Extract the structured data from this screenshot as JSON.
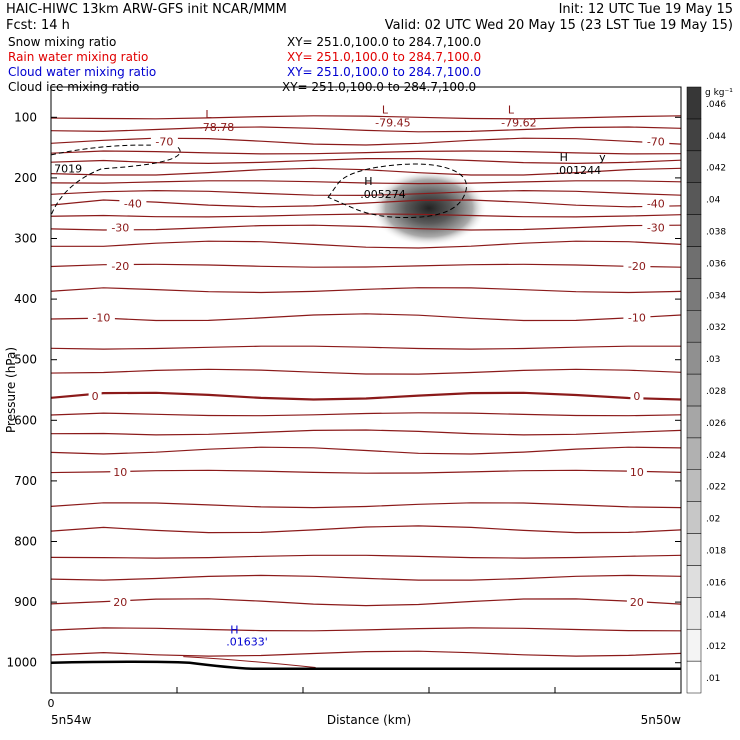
{
  "header": {
    "line1_left": "HAIC-HIWC 13km ARW-GFS init   NCAR/MMM",
    "line1_right": "Init: 12 UTC Tue 19 May 15",
    "line2_left": "Fcst:    14 h",
    "line2_right": "Valid: 02 UTC Wed 20 May 15 (23 LST Tue 19 May 15)",
    "fields": [
      {
        "name": "Snow mixing ratio",
        "xy": "XY= 251.0,100.0 to 284.7,100.0",
        "color": "#000000"
      },
      {
        "name": "Rain water mixing ratio",
        "xy": "XY= 251.0,100.0 to 284.7,100.0",
        "color": "#e00000"
      },
      {
        "name": "Cloud water mixing ratio",
        "xy": "XY= 251.0,100.0 to 284.7,100.0",
        "color": "#0000d0"
      },
      {
        "name": "Cloud ice mixing ratio",
        "xy": "XY= 251.0,100.0 to 284.7,100.0",
        "color": "#000000"
      }
    ]
  },
  "chart_data": {
    "type": "heatmap",
    "ylabel": "Pressure (hPa)",
    "xlabel": "Distance (km)",
    "y_ticks": [
      100,
      200,
      300,
      400,
      500,
      600,
      700,
      800,
      900,
      1000
    ],
    "y_range": [
      50,
      1050
    ],
    "x_range": [
      0,
      1
    ],
    "x_tick_fractions": [
      0,
      0.2,
      0.4,
      0.6,
      0.8,
      1.0
    ],
    "x_tick_labels": [
      "0"
    ],
    "x_endpoint_labels": [
      "5n54w",
      "5n50w"
    ],
    "colorbar": {
      "unit": "g kg⁻¹",
      "levels": [
        ".01",
        ".012",
        ".014",
        ".016",
        ".018",
        ".02",
        ".022",
        ".024",
        ".026",
        ".028",
        ".03",
        ".032",
        ".034",
        ".036",
        ".038",
        ".04",
        ".042",
        ".044",
        ".046"
      ]
    },
    "temperature_contours": {
      "color": "#8b1a1a",
      "interval": 5,
      "pressures": [
        100,
        120,
        140,
        158,
        172,
        190,
        207,
        225,
        242,
        262,
        282,
        310,
        345,
        385,
        430,
        480,
        520,
        560,
        590,
        620,
        650,
        685,
        740,
        780,
        825,
        860,
        900,
        945,
        985
      ],
      "labels": [
        {
          "text": "-70",
          "x": 0.18,
          "p": 140
        },
        {
          "text": "-70",
          "x": 0.96,
          "p": 140
        },
        {
          "text": "-40",
          "x": 0.13,
          "p": 242
        },
        {
          "text": "-40",
          "x": 0.96,
          "p": 242
        },
        {
          "text": "-30",
          "x": 0.11,
          "p": 282
        },
        {
          "text": "-30",
          "x": 0.96,
          "p": 282
        },
        {
          "text": "-20",
          "x": 0.11,
          "p": 345
        },
        {
          "text": "-20",
          "x": 0.93,
          "p": 345
        },
        {
          "text": "-10",
          "x": 0.08,
          "p": 430
        },
        {
          "text": "-10",
          "x": 0.93,
          "p": 430
        },
        {
          "text": "0",
          "x": 0.07,
          "p": 560
        },
        {
          "text": "0",
          "x": 0.93,
          "p": 560
        },
        {
          "text": "10",
          "x": 0.11,
          "p": 685
        },
        {
          "text": "10",
          "x": 0.93,
          "p": 685
        },
        {
          "text": "20",
          "x": 0.11,
          "p": 900
        },
        {
          "text": "20",
          "x": 0.93,
          "p": 900
        }
      ],
      "extrema": [
        {
          "mark": "L",
          "value": "-78.78",
          "x": 0.25,
          "p": 108
        },
        {
          "mark": "L",
          "value": "-79.45",
          "x": 0.53,
          "p": 100
        },
        {
          "mark": "L",
          "value": "-79.62",
          "x": 0.73,
          "p": 100
        }
      ]
    },
    "cloud_ice_contour": {
      "outline": [
        [
          0.44,
          232
        ],
        [
          0.47,
          188
        ],
        [
          0.6,
          172
        ],
        [
          0.67,
          200
        ],
        [
          0.64,
          262
        ],
        [
          0.52,
          268
        ],
        [
          0.44,
          232
        ]
      ],
      "extrema": [
        {
          "mark": "H",
          "value": ".005274",
          "x": 0.51,
          "p": 225
        },
        {
          "mark": "H",
          "value": ".001244",
          "x": 0.82,
          "p": 185
        }
      ],
      "left_value": "7019",
      "right_value": "y"
    },
    "snow_max": {
      "x": 0.6,
      "p": 250,
      "value": 0.046
    },
    "cloud_water": {
      "mark": "H",
      "value": ".01633'",
      "x": 0.31,
      "p": 985,
      "color": "#0000d0"
    },
    "surface_line": {
      "color": "#000000"
    }
  }
}
